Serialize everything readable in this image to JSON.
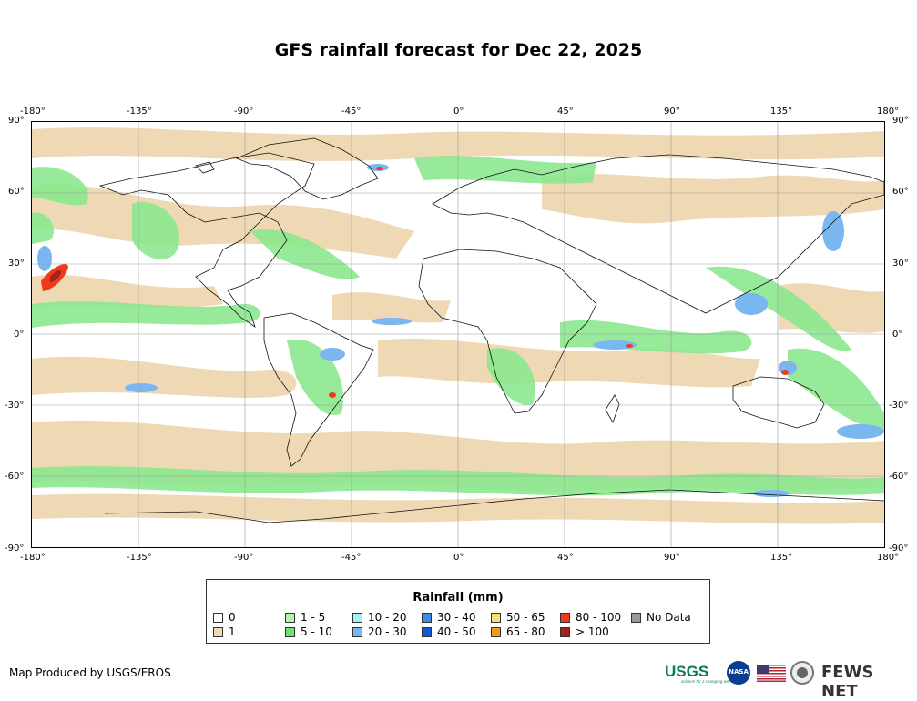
{
  "title": "GFS rainfall forecast for Dec 22, 2025",
  "axes": {
    "lon_ticks": [
      "-180°",
      "-135°",
      "-90°",
      "-45°",
      "0°",
      "45°",
      "90°",
      "135°",
      "180°"
    ],
    "lat_ticks": [
      "90°",
      "60°",
      "30°",
      "0°",
      "-30°",
      "-60°",
      "-90°"
    ]
  },
  "legend": {
    "title": "Rainfall (mm)",
    "items": [
      {
        "label": "0",
        "color": "#ffffff"
      },
      {
        "label": "1",
        "color": "#efd8b4"
      },
      {
        "label": "1 - 5",
        "color": "#b7f0b0"
      },
      {
        "label": "5 - 10",
        "color": "#6fe07a"
      },
      {
        "label": "10 - 20",
        "color": "#a9eef2"
      },
      {
        "label": "20 - 30",
        "color": "#7ab6f0"
      },
      {
        "label": "30 - 40",
        "color": "#3c8ce0"
      },
      {
        "label": "40 - 50",
        "color": "#1458d6"
      },
      {
        "label": "50 - 65",
        "color": "#f7e07a"
      },
      {
        "label": "65 - 80",
        "color": "#f29a1c"
      },
      {
        "label": "80 - 100",
        "color": "#ef3b1a"
      },
      {
        "label": "> 100",
        "color": "#a8201c"
      },
      {
        "label": "No Data",
        "color": "#9a9a9a"
      }
    ]
  },
  "credit": "Map Produced by USGS/EROS",
  "logos": {
    "usgs": "USGS",
    "usgs_tagline": "science for a changing world",
    "nasa": "NASA",
    "fews": "FEWS NET"
  }
}
